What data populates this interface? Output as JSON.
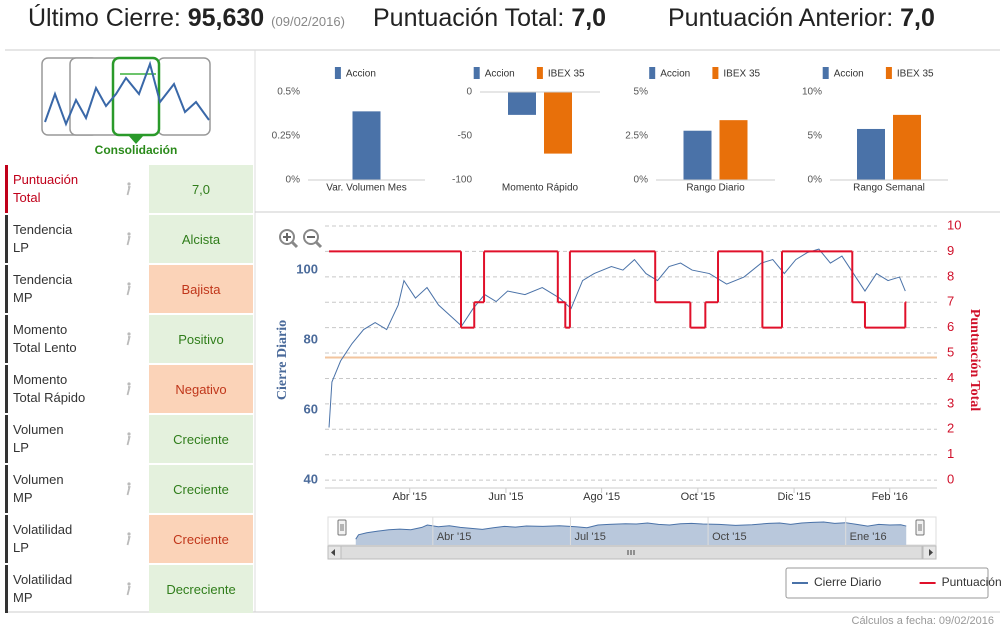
{
  "header": {
    "last_close_label": "Último Cierre:",
    "last_close": "95,630",
    "last_close_date": "(09/02/2016)",
    "score_label": "Puntuación Total:",
    "score": "7,0",
    "previous_label": "Puntuación Anterior:",
    "previous": "7,0"
  },
  "pattern": {
    "label": "Consolidación"
  },
  "indicators": [
    {
      "label": "Puntuación\nTotal",
      "value": "7,0",
      "label_color": "#c0001a",
      "fill": "#e4f1dd",
      "text_color": "#2f7d1a"
    },
    {
      "label": "Tendencia\nLP",
      "value": "Alcista",
      "label_color": "#333333",
      "fill": "#e4f1dd",
      "text_color": "#2f7d1a"
    },
    {
      "label": "Tendencia\nMP",
      "value": "Bajista",
      "label_color": "#333333",
      "fill": "#fbd3b8",
      "text_color": "#c0361a"
    },
    {
      "label": "Momento\nTotal Lento",
      "value": "Positivo",
      "label_color": "#333333",
      "fill": "#e4f1dd",
      "text_color": "#2f7d1a"
    },
    {
      "label": "Momento\nTotal Rápido",
      "value": "Negativo",
      "label_color": "#333333",
      "fill": "#fbd3b8",
      "text_color": "#c0361a"
    },
    {
      "label": "Volumen\nLP",
      "value": "Creciente",
      "label_color": "#333333",
      "fill": "#e4f1dd",
      "text_color": "#2f7d1a"
    },
    {
      "label": "Volumen\nMP",
      "value": "Creciente",
      "label_color": "#333333",
      "fill": "#e4f1dd",
      "text_color": "#2f7d1a"
    },
    {
      "label": "Volatilidad\nLP",
      "value": "Creciente",
      "label_color": "#333333",
      "fill": "#fbd3b8",
      "text_color": "#c0361a"
    },
    {
      "label": "Volatilidad\nMP",
      "value": "Decreciente",
      "label_color": "#333333",
      "fill": "#e4f1dd",
      "text_color": "#2f7d1a"
    }
  ],
  "chart_data": [
    {
      "type": "bar",
      "categories": [
        "Var. Volumen Mes"
      ],
      "series": [
        {
          "name": "Accion",
          "color": "#4a72a8",
          "values": [
            0.39
          ]
        }
      ],
      "ylim": [
        0,
        0.5
      ],
      "yticks": [
        {
          "value": 0,
          "label": "0%"
        },
        {
          "value": 0.25,
          "label": "0.25%"
        },
        {
          "value": 0.5,
          "label": "0.5%"
        }
      ]
    },
    {
      "type": "bar",
      "categories": [
        "Momento Rápido"
      ],
      "series": [
        {
          "name": "Accion",
          "color": "#4a72a8",
          "values": [
            -26
          ]
        },
        {
          "name": "IBEX 35",
          "color": "#e8700a",
          "values": [
            -70
          ]
        }
      ],
      "ylim": [
        -100,
        0
      ],
      "yticks": [
        0,
        -50,
        -100
      ]
    },
    {
      "type": "bar",
      "categories": [
        "Rango Diario"
      ],
      "series": [
        {
          "name": "Accion",
          "color": "#4a72a8",
          "values": [
            2.8
          ]
        },
        {
          "name": "IBEX 35",
          "color": "#e8700a",
          "values": [
            3.4
          ]
        }
      ],
      "ylim": [
        0,
        5
      ],
      "yticks": [
        {
          "value": 0,
          "label": "0%"
        },
        {
          "value": 2.5,
          "label": "2.5%"
        },
        {
          "value": 5,
          "label": "5%"
        }
      ]
    },
    {
      "type": "bar",
      "categories": [
        "Rango Semanal"
      ],
      "series": [
        {
          "name": "Accion",
          "color": "#4a72a8",
          "values": [
            5.8
          ]
        },
        {
          "name": "IBEX 35",
          "color": "#e8700a",
          "values": [
            7.4
          ]
        }
      ],
      "ylim": [
        0,
        10
      ],
      "yticks": [
        {
          "value": 0,
          "label": "0%"
        },
        {
          "value": 5,
          "label": "5%"
        },
        {
          "value": 10,
          "label": "10%"
        }
      ]
    },
    {
      "type": "line",
      "y_label": "Cierre Diario",
      "y2_label": "Puntuación Total",
      "xlim": [
        2015.103,
        2016.165
      ],
      "xticks": [
        {
          "value": 2015.25,
          "label": "Abr '15"
        },
        {
          "value": 2015.417,
          "label": "Jun '15"
        },
        {
          "value": 2015.583,
          "label": "Ago '15"
        },
        {
          "value": 2015.75,
          "label": "Oct '15"
        },
        {
          "value": 2015.917,
          "label": "Dic '15"
        },
        {
          "value": 2016.083,
          "label": "Feb '16"
        }
      ],
      "ylim": [
        37.7,
        112.6
      ],
      "yticks": [
        40,
        60,
        80,
        100
      ],
      "y2lim": [
        -0.31,
        10
      ],
      "y2ticks": [
        0,
        1,
        2,
        3,
        4,
        5,
        6,
        7,
        8,
        9,
        10
      ],
      "grid": true,
      "reference_line": {
        "value": 75,
        "color": "#f2c49e"
      },
      "legend": "bottom-right",
      "series": [
        {
          "name": "Cierre Diario",
          "color": "#4a72a8",
          "x": [
            2015.11,
            2015.115,
            2015.13,
            2015.15,
            2015.17,
            2015.19,
            2015.21,
            2015.23,
            2015.24,
            2015.26,
            2015.28,
            2015.3,
            2015.32,
            2015.34,
            2015.36,
            2015.38,
            2015.4,
            2015.42,
            2015.45,
            2015.48,
            2015.51,
            2015.53,
            2015.55,
            2015.57,
            2015.6,
            2015.62,
            2015.64,
            2015.66,
            2015.68,
            2015.7,
            2015.72,
            2015.74,
            2015.77,
            2015.8,
            2015.83,
            2015.86,
            2015.88,
            2015.9,
            2015.92,
            2015.94,
            2015.96,
            2015.98,
            2016.0,
            2016.02,
            2016.04,
            2016.06,
            2016.08,
            2016.1,
            2016.11
          ],
          "values": [
            55,
            68,
            74,
            79,
            83,
            85,
            83,
            90,
            97,
            92,
            95,
            90,
            87,
            84,
            89,
            93,
            91,
            94,
            93,
            95,
            92,
            89,
            97,
            99,
            101,
            100,
            103,
            99,
            97,
            101,
            102,
            100,
            99,
            96,
            98,
            102,
            103,
            99,
            103,
            105,
            106,
            102,
            104,
            99,
            94,
            99,
            97,
            98,
            94
          ]
        },
        {
          "name": "Puntuación",
          "color": "#e0102a",
          "axis": "y2",
          "step": true,
          "x": [
            2015.11,
            2015.339,
            2015.362,
            2015.379,
            2015.507,
            2015.52,
            2015.528,
            2015.676,
            2015.737,
            2015.763,
            2015.785,
            2015.862,
            2015.896,
            2016.018,
            2016.04,
            2016.11
          ],
          "values": [
            9,
            6,
            7,
            9,
            7,
            6,
            9,
            7,
            6,
            7,
            9,
            6,
            9,
            7,
            6,
            7
          ]
        }
      ],
      "navigator": {
        "xlim": [
          2015.085,
          2016.135
        ],
        "xticks": [
          {
            "value": 2015.25,
            "label": "Abr '15"
          },
          {
            "value": 2015.5,
            "label": "Jul '15"
          },
          {
            "value": 2015.75,
            "label": "Oct '15"
          },
          {
            "value": 2016.0,
            "label": "Ene '16"
          }
        ]
      }
    }
  ],
  "footer": "Cálculos a fecha: 09/02/2016"
}
